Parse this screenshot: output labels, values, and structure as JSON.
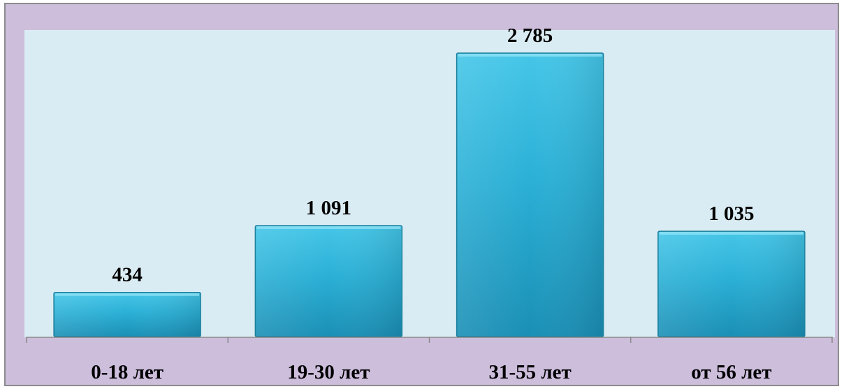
{
  "chart_data": {
    "type": "bar",
    "categories": [
      "0-18 лет",
      "19-30 лет",
      "31-55 лет",
      "от 56 лет"
    ],
    "values": [
      434,
      1091,
      2785,
      1035
    ],
    "value_labels": [
      "434",
      "1 091",
      "2 785",
      "1 035"
    ],
    "title": "",
    "xlabel": "",
    "ylabel": "",
    "ylim": [
      0,
      2785
    ],
    "grid": false,
    "legend": "none",
    "colors": {
      "frame_background": "#cdbedc",
      "plot_background": "#daecf3",
      "bar_top": "#45c6e8",
      "bar_mid": "#2bb0d6",
      "bar_bottom": "#1a8fb5",
      "bar_border": "#1d7f9c",
      "axis": "#8a8a8a",
      "text": "#000000"
    }
  }
}
